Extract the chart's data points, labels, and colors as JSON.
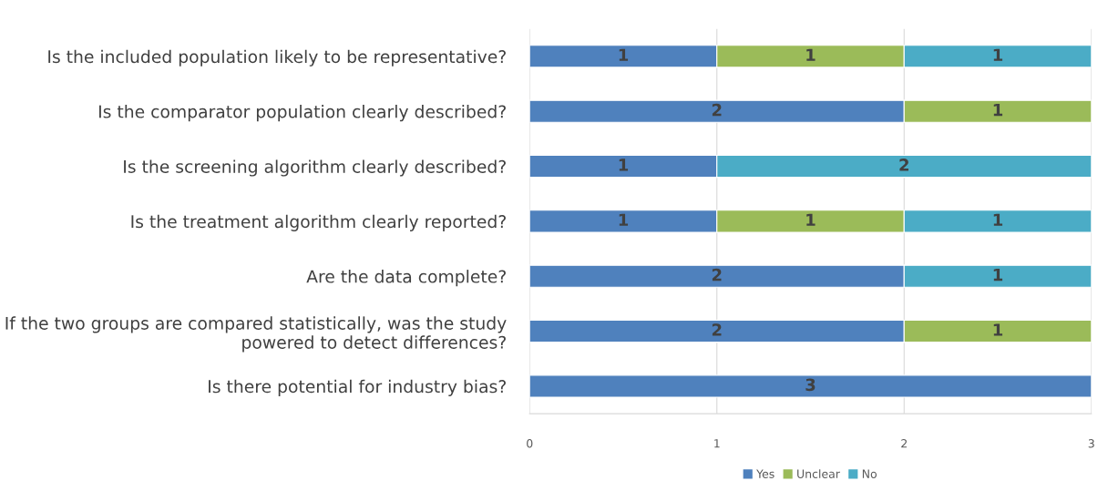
{
  "chart_data": {
    "type": "bar",
    "orientation": "horizontal",
    "stacked": true,
    "categories": [
      "Is the included population likely to be representative?",
      "Is the comparator population clearly described?",
      "Is the screening algorithm clearly described?",
      "Is the treatment algorithm clearly reported?",
      "Are the data complete?",
      "If the two groups are compared statistically, was the study\npowered to detect differences?",
      "Is there potential for industry bias?"
    ],
    "series": [
      {
        "name": "Yes",
        "color": "#4f81bd",
        "values": [
          1,
          2,
          1,
          1,
          2,
          2,
          3
        ]
      },
      {
        "name": "Unclear",
        "color": "#9bbb59",
        "values": [
          1,
          1,
          null,
          1,
          null,
          1,
          null
        ]
      },
      {
        "name": "No",
        "color": "#4bacc6",
        "values": [
          1,
          null,
          2,
          1,
          1,
          null,
          null
        ]
      }
    ],
    "xlim": [
      0,
      3
    ],
    "xticks": [
      0,
      1,
      2,
      3
    ],
    "grid": "x",
    "legend": "bottom",
    "data_labels": true
  }
}
